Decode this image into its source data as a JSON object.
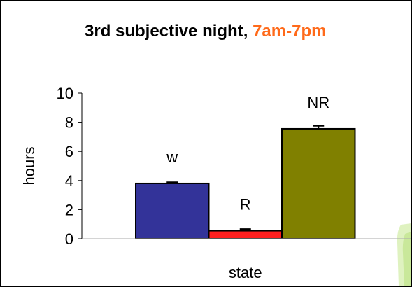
{
  "chart_data": {
    "type": "bar",
    "title": "3rd subjective night,",
    "title_highlight": "7am-7pm",
    "title_highlight_color": "#ff6a1a",
    "xlabel": "state",
    "ylabel": "hours",
    "ylim": [
      0,
      10
    ],
    "yticks": [
      0,
      2,
      4,
      6,
      8,
      10
    ],
    "categories": [
      "w",
      "R",
      "NR"
    ],
    "values": [
      3.8,
      0.55,
      7.55
    ],
    "errors": [
      0.08,
      0.12,
      0.2
    ],
    "colors": [
      "#333399",
      "#ff1f1f",
      "#808000"
    ],
    "grid": false,
    "legend": "none"
  }
}
